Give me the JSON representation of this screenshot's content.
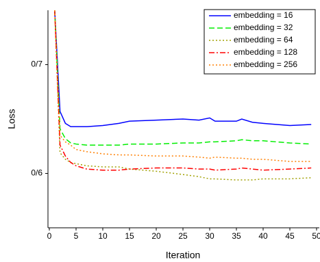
{
  "chart_data": {
    "type": "line",
    "x_label": "Iteration",
    "y_label": "Loss",
    "x": [
      1,
      2,
      3,
      4,
      5,
      7,
      10,
      13,
      15,
      20,
      25,
      28,
      30,
      31,
      35,
      36,
      38,
      40,
      45,
      49
    ],
    "series": [
      {
        "name": "embedding = 16",
        "color": "#0000ff",
        "dash": "solid",
        "values": [
          0.75,
          0.657,
          0.646,
          0.643,
          0.643,
          0.643,
          0.644,
          0.646,
          0.648,
          0.649,
          0.65,
          0.649,
          0.651,
          0.648,
          0.648,
          0.65,
          0.647,
          0.646,
          0.644,
          0.645
        ]
      },
      {
        "name": "embedding = 32",
        "color": "#00ee00",
        "dash": "dashed",
        "values": [
          0.75,
          0.641,
          0.632,
          0.628,
          0.627,
          0.626,
          0.626,
          0.626,
          0.627,
          0.627,
          0.628,
          0.628,
          0.629,
          0.629,
          0.63,
          0.631,
          0.63,
          0.63,
          0.628,
          0.627
        ]
      },
      {
        "name": "embedding = 64",
        "color": "#a0a000",
        "dash": "dotted",
        "values": [
          0.75,
          0.619,
          0.613,
          0.61,
          0.609,
          0.607,
          0.606,
          0.606,
          0.604,
          0.602,
          0.599,
          0.597,
          0.595,
          0.595,
          0.594,
          0.594,
          0.594,
          0.595,
          0.595,
          0.596
        ]
      },
      {
        "name": "embedding = 128",
        "color": "#ff0000",
        "dash": "dashdot",
        "values": [
          0.75,
          0.626,
          0.616,
          0.61,
          0.607,
          0.604,
          0.603,
          0.603,
          0.604,
          0.605,
          0.605,
          0.604,
          0.604,
          0.603,
          0.604,
          0.605,
          0.604,
          0.603,
          0.604,
          0.605
        ]
      },
      {
        "name": "embedding = 256",
        "color": "#ff7f00",
        "dash": "dotted",
        "values": [
          0.75,
          0.635,
          0.629,
          0.626,
          0.622,
          0.62,
          0.618,
          0.617,
          0.617,
          0.616,
          0.616,
          0.615,
          0.614,
          0.615,
          0.614,
          0.614,
          0.613,
          0.613,
          0.611,
          0.611
        ]
      }
    ],
    "xlim": [
      0,
      50
    ],
    "xticks": [
      0,
      5,
      10,
      15,
      20,
      25,
      30,
      35,
      40,
      45,
      50
    ],
    "ylim": [
      0.55,
      0.75
    ],
    "yticks": [
      {
        "value": 0.6,
        "label": "0/6"
      },
      {
        "value": 0.7,
        "label": "0/7"
      }
    ],
    "legend": "upper right",
    "grid": false
  }
}
